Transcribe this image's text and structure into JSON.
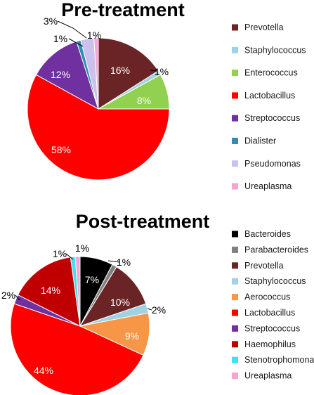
{
  "chart_data": [
    {
      "type": "pie",
      "title": "Pre-treatment",
      "slices": [
        {
          "label": "Prevotella",
          "value": 16,
          "display": "16%",
          "color": "#6b2426"
        },
        {
          "label": "Staphylococcus",
          "value": 1,
          "display": "1%",
          "color": "#9fd2e2"
        },
        {
          "label": "Enterococcus",
          "value": 8,
          "display": "8%",
          "color": "#92d050"
        },
        {
          "label": "Lactobacillus",
          "value": 58,
          "display": "58%",
          "color": "#ff0000"
        },
        {
          "label": "Streptococcus",
          "value": 12,
          "display": "12%",
          "color": "#7030a0"
        },
        {
          "label": "Dialister",
          "value": 1,
          "display": "1%",
          "color": "#2e8fb0"
        },
        {
          "label": "Pseudomonas",
          "value": 3,
          "display": "3%",
          "color": "#ccc0ec"
        },
        {
          "label": "Ureaplasma",
          "value": 1,
          "display": "1%",
          "color": "#f4a6d0"
        }
      ]
    },
    {
      "type": "pie",
      "title": "Post-treatment",
      "slices": [
        {
          "label": "Bacteroides",
          "value": 7,
          "display": "7%",
          "color": "#000000"
        },
        {
          "label": "Parabacteroides",
          "value": 1,
          "display": "1%",
          "color": "#808080"
        },
        {
          "label": "Prevotella",
          "value": 10,
          "display": "10%",
          "color": "#6b2426"
        },
        {
          "label": "Staphylococcus",
          "value": 2,
          "display": "2%",
          "color": "#9fd2e2"
        },
        {
          "label": "Aerococcus",
          "value": 9,
          "display": "9%",
          "color": "#f79646"
        },
        {
          "label": "Lactobacillus",
          "value": 44,
          "display": "44%",
          "color": "#ff0000"
        },
        {
          "label": "Streptococcus",
          "value": 2,
          "display": "2%",
          "color": "#7030a0"
        },
        {
          "label": "Haemophilus",
          "value": 14,
          "display": "14%",
          "color": "#c00000"
        },
        {
          "label": "Stenotrophomonas",
          "value": 1,
          "display": "1%",
          "color": "#40e0f0"
        },
        {
          "label": "Ureaplasma",
          "value": 1,
          "display": "1%",
          "color": "#f4a6d0"
        }
      ]
    }
  ]
}
